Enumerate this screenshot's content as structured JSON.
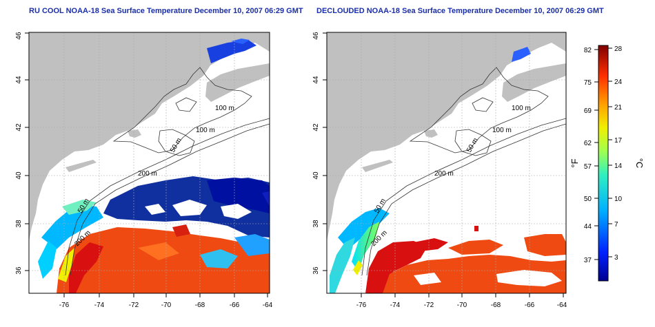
{
  "panels": [
    {
      "title": "RU COOL NOAA-18 Sea Surface Temperature December 10, 2007 06:29 GMT",
      "x_ticks": [
        "-76",
        "-74",
        "-72",
        "-70",
        "-68",
        "-66",
        "-64"
      ],
      "y_ticks": [
        "36",
        "38",
        "40",
        "42",
        "44",
        "46"
      ],
      "contour_labels": [
        "100 m",
        "100 m",
        "50 m",
        "200 m",
        "50 m",
        "200 m"
      ]
    },
    {
      "title": "DECLOUDED NOAA-18 Sea Surface Temperature December 10, 2007 06:29 GMT",
      "x_ticks": [
        "-76",
        "-74",
        "-72",
        "-70",
        "-68",
        "-66",
        "-64"
      ],
      "y_ticks": [
        "36",
        "38",
        "40",
        "42",
        "44",
        "46"
      ],
      "contour_labels": [
        "100 m",
        "100 m",
        "50 m",
        "200 m",
        "50 m",
        "200 m"
      ]
    }
  ],
  "colorbar": {
    "fahrenheit_ticks": [
      "82",
      "75",
      "69",
      "62",
      "57",
      "50",
      "44",
      "37"
    ],
    "celsius_ticks": [
      "28",
      "24",
      "21",
      "17",
      "14",
      "10",
      "7",
      "3"
    ],
    "fahrenheit_label": "°F",
    "celsius_label": "°C"
  },
  "colors": {
    "land": "#c0c0c0",
    "title": "#1a2ea8",
    "warm": "#ee4a12",
    "cold": "#1030a0"
  }
}
